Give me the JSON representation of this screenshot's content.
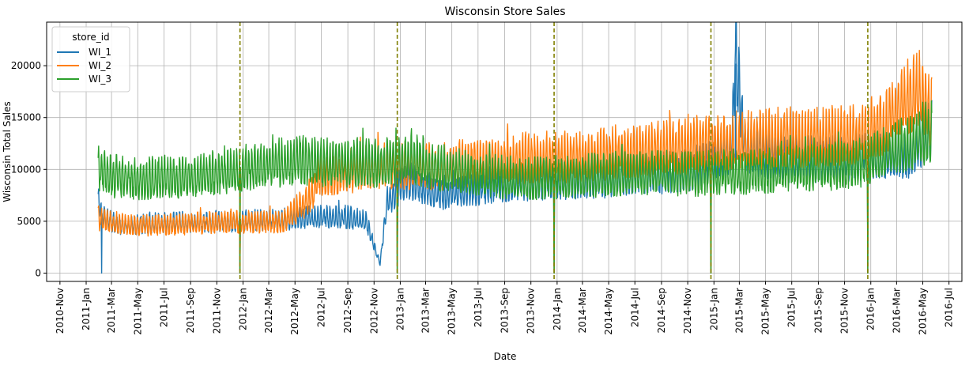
{
  "chart_data": {
    "type": "line",
    "title": "Wisconsin Store Sales",
    "xlabel": "Date",
    "ylabel": "Wisconsin Total Sales",
    "x_range": [
      "2010-10-01",
      "2016-07-31"
    ],
    "ylim": [
      -800,
      24200
    ],
    "y_ticks": [
      0,
      5000,
      10000,
      15000,
      20000
    ],
    "x_ticks": [
      {
        "date": "2010-11-01",
        "label": "2010-Nov"
      },
      {
        "date": "2011-01-01",
        "label": "2011-Jan"
      },
      {
        "date": "2011-03-01",
        "label": "2011-Mar"
      },
      {
        "date": "2011-05-01",
        "label": "2011-May"
      },
      {
        "date": "2011-07-01",
        "label": "2011-Jul"
      },
      {
        "date": "2011-09-01",
        "label": "2011-Sep"
      },
      {
        "date": "2011-11-01",
        "label": "2011-Nov"
      },
      {
        "date": "2012-01-01",
        "label": "2012-Jan"
      },
      {
        "date": "2012-03-01",
        "label": "2012-Mar"
      },
      {
        "date": "2012-05-01",
        "label": "2012-May"
      },
      {
        "date": "2012-07-01",
        "label": "2012-Jul"
      },
      {
        "date": "2012-09-01",
        "label": "2012-Sep"
      },
      {
        "date": "2012-11-01",
        "label": "2012-Nov"
      },
      {
        "date": "2013-01-01",
        "label": "2013-Jan"
      },
      {
        "date": "2013-03-01",
        "label": "2013-Mar"
      },
      {
        "date": "2013-05-01",
        "label": "2013-May"
      },
      {
        "date": "2013-07-01",
        "label": "2013-Jul"
      },
      {
        "date": "2013-09-01",
        "label": "2013-Sep"
      },
      {
        "date": "2013-11-01",
        "label": "2013-Nov"
      },
      {
        "date": "2014-01-01",
        "label": "2014-Jan"
      },
      {
        "date": "2014-03-01",
        "label": "2014-Mar"
      },
      {
        "date": "2014-05-01",
        "label": "2014-May"
      },
      {
        "date": "2014-07-01",
        "label": "2014-Jul"
      },
      {
        "date": "2014-09-01",
        "label": "2014-Sep"
      },
      {
        "date": "2014-11-01",
        "label": "2014-Nov"
      },
      {
        "date": "2015-01-01",
        "label": "2015-Jan"
      },
      {
        "date": "2015-03-01",
        "label": "2015-Mar"
      },
      {
        "date": "2015-05-01",
        "label": "2015-May"
      },
      {
        "date": "2015-07-01",
        "label": "2015-Jul"
      },
      {
        "date": "2015-09-01",
        "label": "2015-Sep"
      },
      {
        "date": "2015-11-01",
        "label": "2015-Nov"
      },
      {
        "date": "2016-01-01",
        "label": "2016-Jan"
      },
      {
        "date": "2016-03-01",
        "label": "2016-Mar"
      },
      {
        "date": "2016-05-01",
        "label": "2016-May"
      },
      {
        "date": "2016-07-01",
        "label": "2016-Jul"
      }
    ],
    "grid": true,
    "legend": {
      "title": "store_id",
      "placement": "top-left"
    },
    "vlines": {
      "color": "#808000",
      "style": "dashed",
      "dates": [
        "2011-12-25",
        "2012-12-25",
        "2013-12-25",
        "2014-12-25",
        "2015-12-25"
      ]
    },
    "series": [
      {
        "name": "WI_1",
        "color": "#1f77b4",
        "points": [
          [
            "2011-01-29",
            6400
          ],
          [
            "2011-02-06",
            0
          ],
          [
            "2011-02-15",
            5000
          ],
          [
            "2011-03-15",
            4400
          ],
          [
            "2011-05-01",
            4500
          ],
          [
            "2011-07-01",
            4600
          ],
          [
            "2011-09-01",
            4700
          ],
          [
            "2011-11-01",
            4700
          ],
          [
            "2011-12-25",
            0
          ],
          [
            "2012-02-15",
            4800
          ],
          [
            "2012-05-01",
            5000
          ],
          [
            "2012-07-01",
            5200
          ],
          [
            "2012-09-01",
            5100
          ],
          [
            "2012-10-15",
            4700
          ],
          [
            "2012-11-01",
            2500
          ],
          [
            "2012-11-15",
            900
          ],
          [
            "2012-12-01",
            6500
          ],
          [
            "2012-12-25",
            0
          ],
          [
            "2013-01-15",
            8600
          ],
          [
            "2013-02-15",
            8000
          ],
          [
            "2013-04-01",
            7300
          ],
          [
            "2013-06-01",
            7600
          ],
          [
            "2013-08-01",
            8000
          ],
          [
            "2013-10-01",
            8300
          ],
          [
            "2013-12-25",
            0
          ],
          [
            "2014-02-15",
            8500
          ],
          [
            "2014-05-01",
            8700
          ],
          [
            "2014-08-01",
            9000
          ],
          [
            "2014-11-01",
            9400
          ],
          [
            "2014-12-25",
            0
          ],
          [
            "2015-02-10",
            11200
          ],
          [
            "2015-02-20",
            20200
          ],
          [
            "2015-03-15",
            11500
          ],
          [
            "2015-06-01",
            10500
          ],
          [
            "2015-09-01",
            10300
          ],
          [
            "2015-12-01",
            10600
          ],
          [
            "2015-12-25",
            0
          ],
          [
            "2016-02-01",
            10800
          ],
          [
            "2016-04-01",
            11000
          ],
          [
            "2016-05-22",
            13200
          ]
        ]
      },
      {
        "name": "WI_2",
        "color": "#ff7f0e",
        "points": [
          [
            "2011-01-29",
            5000
          ],
          [
            "2011-03-01",
            4600
          ],
          [
            "2011-05-01",
            4300
          ],
          [
            "2011-07-01",
            4400
          ],
          [
            "2011-09-01",
            4500
          ],
          [
            "2011-11-01",
            4600
          ],
          [
            "2011-12-25",
            0
          ],
          [
            "2012-02-01",
            4700
          ],
          [
            "2012-04-01",
            4600
          ],
          [
            "2012-06-01",
            6800
          ],
          [
            "2012-07-01",
            9000
          ],
          [
            "2012-09-01",
            9300
          ],
          [
            "2012-11-01",
            9600
          ],
          [
            "2012-12-25",
            0
          ],
          [
            "2013-02-01",
            9800
          ],
          [
            "2013-04-01",
            9600
          ],
          [
            "2013-06-01",
            10000
          ],
          [
            "2013-09-01",
            10300
          ],
          [
            "2013-12-01",
            10500
          ],
          [
            "2013-12-25",
            0
          ],
          [
            "2014-03-01",
            10600
          ],
          [
            "2014-06-01",
            11000
          ],
          [
            "2014-09-01",
            11300
          ],
          [
            "2014-12-01",
            11700
          ],
          [
            "2014-12-25",
            0
          ],
          [
            "2015-03-01",
            12000
          ],
          [
            "2015-06-01",
            12300
          ],
          [
            "2015-09-01",
            12400
          ],
          [
            "2015-12-01",
            12500
          ],
          [
            "2015-12-25",
            0
          ],
          [
            "2016-02-01",
            13500
          ],
          [
            "2016-03-15",
            15500
          ],
          [
            "2016-04-25",
            16500
          ],
          [
            "2016-05-22",
            14500
          ]
        ]
      },
      {
        "name": "WI_3",
        "color": "#2ca02c",
        "points": [
          [
            "2011-01-29",
            9500
          ],
          [
            "2011-03-01",
            8800
          ],
          [
            "2011-05-01",
            8600
          ],
          [
            "2011-07-01",
            8700
          ],
          [
            "2011-09-01",
            8800
          ],
          [
            "2011-11-01",
            9000
          ],
          [
            "2011-12-25",
            0
          ],
          [
            "2012-02-01",
            9800
          ],
          [
            "2012-05-01",
            10200
          ],
          [
            "2012-08-01",
            10100
          ],
          [
            "2012-11-01",
            10000
          ],
          [
            "2012-12-25",
            0
          ],
          [
            "2013-02-01",
            10300
          ],
          [
            "2013-05-01",
            9300
          ],
          [
            "2013-08-01",
            8800
          ],
          [
            "2013-11-01",
            8600
          ],
          [
            "2013-12-25",
            0
          ],
          [
            "2014-03-01",
            8800
          ],
          [
            "2014-06-01",
            9000
          ],
          [
            "2014-09-01",
            9100
          ],
          [
            "2014-12-01",
            9000
          ],
          [
            "2014-12-25",
            0
          ],
          [
            "2015-03-01",
            9200
          ],
          [
            "2015-06-01",
            9400
          ],
          [
            "2015-09-01",
            9600
          ],
          [
            "2015-12-01",
            9900
          ],
          [
            "2015-12-25",
            0
          ],
          [
            "2016-02-01",
            10800
          ],
          [
            "2016-04-01",
            11800
          ],
          [
            "2016-05-22",
            13000
          ]
        ]
      }
    ]
  }
}
